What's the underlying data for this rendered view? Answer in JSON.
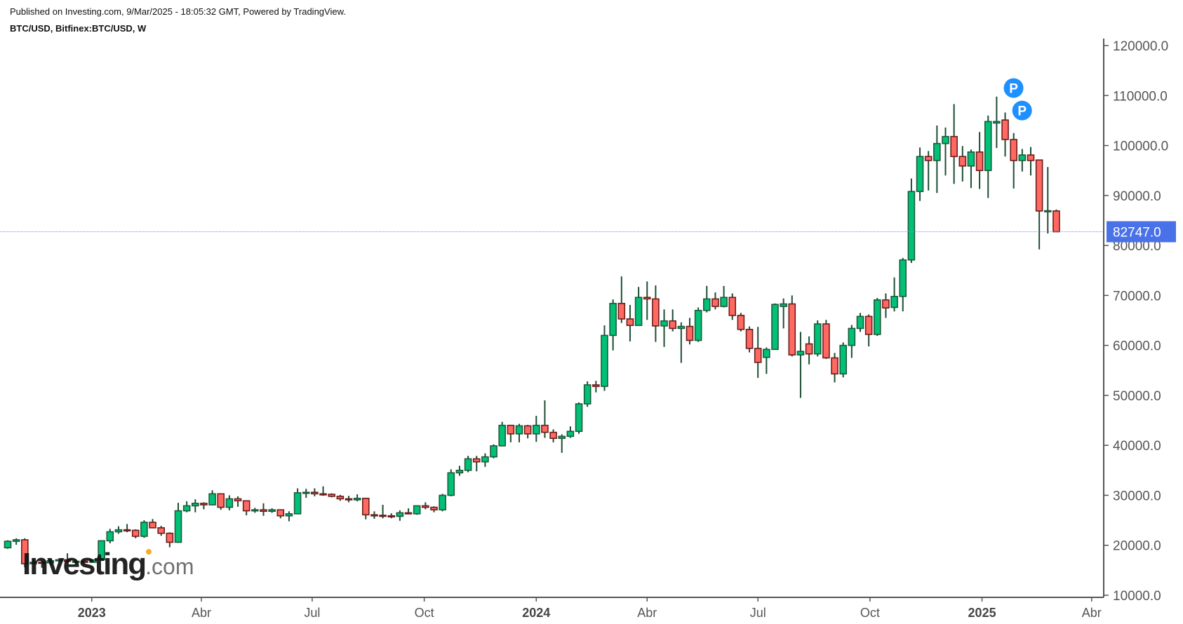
{
  "header": {
    "published": "Published on Investing.com, 9/Mar/2025 - 18:05:32 GMT, Powered by TradingView.",
    "symbol": "BTC/USD, Bitfinex:BTC/USD, W"
  },
  "logo": {
    "text": "Investing",
    "suffix": ".com"
  },
  "chart_data": {
    "type": "candlestick",
    "title": "BTC/USD, Bitfinex:BTC/USD, W",
    "interval": "W",
    "ylim": [
      10000,
      120000
    ],
    "y_ticks": [
      "10000.0",
      "20000.0",
      "30000.0",
      "40000.0",
      "50000.0",
      "60000.0",
      "70000.0",
      "80000.0",
      "90000.0",
      "100000.0",
      "110000.0",
      "120000.0"
    ],
    "x_ticks": [
      {
        "label": "2023",
        "date": "2023-01-01",
        "bold": true
      },
      {
        "label": "Abr",
        "date": "2023-04-01",
        "bold": false
      },
      {
        "label": "Jul",
        "date": "2023-07-01",
        "bold": false
      },
      {
        "label": "Oct",
        "date": "2023-10-01",
        "bold": false
      },
      {
        "label": "2024",
        "date": "2024-01-01",
        "bold": true
      },
      {
        "label": "Abr",
        "date": "2024-04-01",
        "bold": false
      },
      {
        "label": "Jul",
        "date": "2024-07-01",
        "bold": false
      },
      {
        "label": "Oct",
        "date": "2024-10-01",
        "bold": false
      },
      {
        "label": "2025",
        "date": "2025-01-01",
        "bold": true
      },
      {
        "label": "Abr",
        "date": "2025-04-01",
        "bold": false
      }
    ],
    "last_price": {
      "value": 82747.0,
      "label": "82747.0",
      "color": "#4a72e8"
    },
    "colors": {
      "up": "#00c176",
      "up_border": "#1d5a3b",
      "down": "#ff6961",
      "down_border": "#6b1d1d",
      "wick": "#1d4d33",
      "marker": "#1e90ff"
    },
    "markers": [
      {
        "label": "P",
        "date": "2025-01-20",
        "price": 111500
      },
      {
        "label": "P",
        "date": "2025-01-27",
        "price": 107000
      }
    ],
    "candles_columns": [
      "week",
      "open",
      "high",
      "low",
      "close"
    ],
    "candles": [
      [
        "2022-10-24",
        19500,
        21000,
        19300,
        20800
      ],
      [
        "2022-10-31",
        20800,
        21400,
        20100,
        21100
      ],
      [
        "2022-11-07",
        21100,
        21400,
        15600,
        16300
      ],
      [
        "2022-11-14",
        16300,
        17200,
        16200,
        16600
      ],
      [
        "2022-11-21",
        16600,
        16800,
        15500,
        16500
      ],
      [
        "2022-11-28",
        16500,
        17400,
        16000,
        16900
      ],
      [
        "2022-12-05",
        16900,
        17400,
        16700,
        17100
      ],
      [
        "2022-12-12",
        17100,
        18400,
        16500,
        16800
      ],
      [
        "2022-12-19",
        16800,
        17000,
        16300,
        16800
      ],
      [
        "2022-12-26",
        16800,
        16900,
        16400,
        16600
      ],
      [
        "2023-01-02",
        16600,
        17200,
        16500,
        17100
      ],
      [
        "2023-01-09",
        17100,
        21000,
        17100,
        20900
      ],
      [
        "2023-01-16",
        20900,
        23300,
        20400,
        22700
      ],
      [
        "2023-01-23",
        22700,
        23800,
        22300,
        23100
      ],
      [
        "2023-01-30",
        23100,
        24250,
        22600,
        23000
      ],
      [
        "2023-02-06",
        23000,
        23200,
        21400,
        21800
      ],
      [
        "2023-02-13",
        21800,
        25000,
        21500,
        24600
      ],
      [
        "2023-02-20",
        24600,
        25250,
        23400,
        23500
      ],
      [
        "2023-02-27",
        23500,
        23900,
        21900,
        22400
      ],
      [
        "2023-03-06",
        22400,
        22600,
        19600,
        20600
      ],
      [
        "2023-03-13",
        20600,
        28500,
        20500,
        26900
      ],
      [
        "2023-03-20",
        26900,
        28800,
        26600,
        27900
      ],
      [
        "2023-03-27",
        27900,
        29200,
        26600,
        28400
      ],
      [
        "2023-04-03",
        28400,
        28600,
        27200,
        28100
      ],
      [
        "2023-04-10",
        28100,
        31000,
        28000,
        30300
      ],
      [
        "2023-04-17",
        30300,
        30400,
        27100,
        27600
      ],
      [
        "2023-04-24",
        27600,
        30000,
        27000,
        29300
      ],
      [
        "2023-05-01",
        29300,
        29800,
        27700,
        28900
      ],
      [
        "2023-05-08",
        28900,
        29000,
        26000,
        26900
      ],
      [
        "2023-05-15",
        26900,
        27500,
        26500,
        27100
      ],
      [
        "2023-05-22",
        27100,
        28400,
        25900,
        26800
      ],
      [
        "2023-05-29",
        26800,
        27400,
        26500,
        27100
      ],
      [
        "2023-06-05",
        27100,
        27200,
        25400,
        25900
      ],
      [
        "2023-06-12",
        25900,
        26800,
        24800,
        26300
      ],
      [
        "2023-06-19",
        26300,
        31400,
        26300,
        30500
      ],
      [
        "2023-06-26",
        30500,
        31300,
        29500,
        30600
      ],
      [
        "2023-07-03",
        30600,
        31400,
        29800,
        30300
      ],
      [
        "2023-07-10",
        30300,
        31800,
        29900,
        30200
      ],
      [
        "2023-07-17",
        30200,
        30400,
        29600,
        29800
      ],
      [
        "2023-07-24",
        29800,
        30100,
        28900,
        29300
      ],
      [
        "2023-07-31",
        29300,
        29900,
        28600,
        29100
      ],
      [
        "2023-08-07",
        29100,
        30200,
        28800,
        29400
      ],
      [
        "2023-08-14",
        29400,
        29500,
        25200,
        26100
      ],
      [
        "2023-08-21",
        26100,
        26800,
        25300,
        26000
      ],
      [
        "2023-08-28",
        26000,
        28100,
        25400,
        25900
      ],
      [
        "2023-09-04",
        25900,
        26400,
        25400,
        25800
      ],
      [
        "2023-09-11",
        25800,
        27000,
        24900,
        26500
      ],
      [
        "2023-09-18",
        26500,
        27400,
        26300,
        26300
      ],
      [
        "2023-09-25",
        26300,
        28000,
        26100,
        27900
      ],
      [
        "2023-10-02",
        27900,
        28600,
        27200,
        27600
      ],
      [
        "2023-10-09",
        27600,
        27800,
        26600,
        27100
      ],
      [
        "2023-10-16",
        27100,
        30300,
        26800,
        30000
      ],
      [
        "2023-10-23",
        30000,
        35200,
        29800,
        34500
      ],
      [
        "2023-10-30",
        34500,
        35900,
        33900,
        35000
      ],
      [
        "2023-11-06",
        35000,
        37900,
        34600,
        37300
      ],
      [
        "2023-11-13",
        37300,
        37900,
        34800,
        36700
      ],
      [
        "2023-11-20",
        36700,
        38400,
        35700,
        37700
      ],
      [
        "2023-11-27",
        37700,
        40200,
        37400,
        39900
      ],
      [
        "2023-12-04",
        39900,
        44700,
        39800,
        44000
      ],
      [
        "2023-12-11",
        44000,
        44100,
        40600,
        42300
      ],
      [
        "2023-12-18",
        42300,
        44300,
        40600,
        43900
      ],
      [
        "2023-12-25",
        43900,
        44100,
        41400,
        42300
      ],
      [
        "2024-01-01",
        42300,
        45900,
        40700,
        44000
      ],
      [
        "2024-01-08",
        44000,
        49000,
        41500,
        42600
      ],
      [
        "2024-01-15",
        42600,
        43200,
        40600,
        41400
      ],
      [
        "2024-01-22",
        41400,
        42200,
        38500,
        41800
      ],
      [
        "2024-01-29",
        41800,
        43800,
        41500,
        42800
      ],
      [
        "2024-02-05",
        42800,
        48600,
        42300,
        48300
      ],
      [
        "2024-02-12",
        48300,
        52800,
        47700,
        52100
      ],
      [
        "2024-02-19",
        52100,
        52900,
        50600,
        51800
      ],
      [
        "2024-02-26",
        51800,
        64000,
        50900,
        62000
      ],
      [
        "2024-03-04",
        62000,
        69200,
        59000,
        68400
      ],
      [
        "2024-03-11",
        68400,
        73800,
        64500,
        65300
      ],
      [
        "2024-03-18",
        65300,
        68100,
        60800,
        64000
      ],
      [
        "2024-03-25",
        64000,
        71700,
        64000,
        69600
      ],
      [
        "2024-04-01",
        69600,
        72800,
        65100,
        69300
      ],
      [
        "2024-04-08",
        69300,
        72000,
        60700,
        63900
      ],
      [
        "2024-04-15",
        63900,
        67200,
        59700,
        64900
      ],
      [
        "2024-04-22",
        64900,
        67200,
        62800,
        63400
      ],
      [
        "2024-04-29",
        63400,
        64600,
        56500,
        63800
      ],
      [
        "2024-05-06",
        63800,
        65500,
        60200,
        61000
      ],
      [
        "2024-05-13",
        61000,
        67600,
        60700,
        67000
      ],
      [
        "2024-05-20",
        67000,
        71900,
        66600,
        69300
      ],
      [
        "2024-05-27",
        69300,
        70600,
        67200,
        67800
      ],
      [
        "2024-06-03",
        67800,
        71900,
        67600,
        69600
      ],
      [
        "2024-06-10",
        69600,
        70400,
        65100,
        66000
      ],
      [
        "2024-06-17",
        66000,
        66500,
        62800,
        63200
      ],
      [
        "2024-06-24",
        63200,
        63800,
        58600,
        59400
      ],
      [
        "2024-07-01",
        59400,
        63700,
        53500,
        56600
      ],
      [
        "2024-07-08",
        57600,
        59600,
        54300,
        59200
      ],
      [
        "2024-07-15",
        59200,
        68400,
        59200,
        68200
      ],
      [
        "2024-07-22",
        67800,
        69400,
        63400,
        68300
      ],
      [
        "2024-07-29",
        68300,
        70000,
        57800,
        58100
      ],
      [
        "2024-08-05",
        58100,
        62700,
        49500,
        58800
      ],
      [
        "2024-08-12",
        60300,
        61800,
        56200,
        58300
      ],
      [
        "2024-08-19",
        58300,
        65000,
        57800,
        64300
      ],
      [
        "2024-08-26",
        64300,
        65100,
        57300,
        57500
      ],
      [
        "2024-09-02",
        57500,
        58500,
        52600,
        54300
      ],
      [
        "2024-09-09",
        54300,
        60600,
        53600,
        60000
      ],
      [
        "2024-09-16",
        60000,
        64100,
        57500,
        63400
      ],
      [
        "2024-09-23",
        63400,
        66500,
        62700,
        65800
      ],
      [
        "2024-09-30",
        65800,
        66200,
        59800,
        62200
      ],
      [
        "2024-10-07",
        62200,
        69500,
        61900,
        69100
      ],
      [
        "2024-10-14",
        69100,
        70400,
        65500,
        67500
      ],
      [
        "2024-10-21",
        67600,
        73600,
        66800,
        69800
      ],
      [
        "2024-10-28",
        69800,
        77500,
        66800,
        77100
      ],
      [
        "2024-11-04",
        77100,
        93400,
        76500,
        90800
      ],
      [
        "2024-11-11",
        90800,
        99600,
        88900,
        97800
      ],
      [
        "2024-11-18",
        97800,
        98900,
        91000,
        97000
      ],
      [
        "2024-11-25",
        97000,
        104000,
        90500,
        100400
      ],
      [
        "2024-12-02",
        100400,
        103600,
        94000,
        101800
      ],
      [
        "2024-12-09",
        101800,
        108300,
        92300,
        97800
      ],
      [
        "2024-12-16",
        97800,
        99900,
        92800,
        95900
      ],
      [
        "2024-12-23",
        95900,
        99200,
        91500,
        98700
      ],
      [
        "2024-12-30",
        98700,
        102700,
        91300,
        95000
      ],
      [
        "2025-01-06",
        95000,
        106000,
        89500,
        104800
      ],
      [
        "2025-01-13",
        104500,
        109800,
        99500,
        104800
      ],
      [
        "2025-01-20",
        105100,
        106600,
        97800,
        101200
      ],
      [
        "2025-01-27",
        101200,
        102500,
        91400,
        97000
      ],
      [
        "2025-02-03",
        97000,
        99300,
        94800,
        98100
      ],
      [
        "2025-02-10",
        98100,
        99700,
        94000,
        97000
      ],
      [
        "2025-02-17",
        97100,
        97200,
        79200,
        86900
      ],
      [
        "2025-02-24",
        86900,
        95700,
        82400,
        86950
      ],
      [
        "2025-03-03",
        86900,
        87200,
        82747,
        82747
      ]
    ]
  }
}
